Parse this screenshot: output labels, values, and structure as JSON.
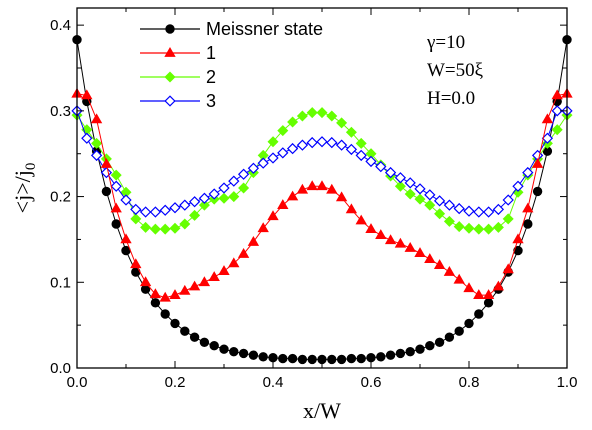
{
  "chart_data": {
    "type": "line",
    "xlabel": "x/W",
    "ylabel": "<j>/j",
    "ylabel_subscript": "0",
    "xlim": [
      0.0,
      1.0
    ],
    "ylim": [
      0.0,
      0.42
    ],
    "xticks": [
      "0.0",
      "0.2",
      "0.4",
      "0.6",
      "0.8",
      "1.0"
    ],
    "yticks": [
      "0.0",
      "0.1",
      "0.2",
      "0.3",
      "0.4"
    ],
    "annotations": [
      "γ=10",
      "W=50ξ",
      "H=0.0"
    ],
    "legend_position": "top-left",
    "series": [
      {
        "name": "Meissner state",
        "color": "#000000",
        "marker": "circle",
        "x": [
          0.0,
          0.02,
          0.04,
          0.06,
          0.08,
          0.1,
          0.12,
          0.14,
          0.16,
          0.18,
          0.2,
          0.22,
          0.24,
          0.26,
          0.28,
          0.3,
          0.32,
          0.34,
          0.36,
          0.38,
          0.4,
          0.42,
          0.44,
          0.46,
          0.48,
          0.5,
          0.52,
          0.54,
          0.56,
          0.58,
          0.6,
          0.62,
          0.64,
          0.66,
          0.68,
          0.7,
          0.72,
          0.74,
          0.76,
          0.78,
          0.8,
          0.82,
          0.84,
          0.86,
          0.88,
          0.9,
          0.92,
          0.94,
          0.96,
          0.98,
          1.0
        ],
        "y": [
          0.383,
          0.311,
          0.253,
          0.206,
          0.168,
          0.137,
          0.112,
          0.092,
          0.076,
          0.063,
          0.052,
          0.043,
          0.036,
          0.03,
          0.026,
          0.022,
          0.019,
          0.017,
          0.015,
          0.013,
          0.012,
          0.011,
          0.011,
          0.01,
          0.01,
          0.01,
          0.01,
          0.01,
          0.011,
          0.011,
          0.012,
          0.013,
          0.015,
          0.017,
          0.019,
          0.022,
          0.026,
          0.03,
          0.036,
          0.043,
          0.052,
          0.063,
          0.076,
          0.092,
          0.112,
          0.137,
          0.168,
          0.206,
          0.253,
          0.311,
          0.383
        ]
      },
      {
        "name": "1",
        "color": "#ff0000",
        "marker": "triangle",
        "x": [
          0.0,
          0.02,
          0.04,
          0.06,
          0.08,
          0.1,
          0.12,
          0.14,
          0.16,
          0.18,
          0.2,
          0.22,
          0.24,
          0.26,
          0.28,
          0.3,
          0.32,
          0.34,
          0.36,
          0.38,
          0.4,
          0.42,
          0.44,
          0.46,
          0.48,
          0.5,
          0.52,
          0.54,
          0.56,
          0.58,
          0.6,
          0.62,
          0.64,
          0.66,
          0.68,
          0.7,
          0.72,
          0.74,
          0.76,
          0.78,
          0.8,
          0.82,
          0.84,
          0.86,
          0.88,
          0.9,
          0.92,
          0.94,
          0.96,
          0.98,
          1.0
        ],
        "y": [
          0.32,
          0.318,
          0.29,
          0.238,
          0.186,
          0.15,
          0.121,
          0.1,
          0.086,
          0.082,
          0.085,
          0.09,
          0.095,
          0.1,
          0.106,
          0.113,
          0.122,
          0.133,
          0.147,
          0.163,
          0.177,
          0.19,
          0.2,
          0.208,
          0.212,
          0.212,
          0.208,
          0.199,
          0.185,
          0.172,
          0.162,
          0.155,
          0.149,
          0.145,
          0.14,
          0.134,
          0.127,
          0.12,
          0.112,
          0.103,
          0.093,
          0.085,
          0.085,
          0.095,
          0.115,
          0.15,
          0.186,
          0.238,
          0.29,
          0.318,
          0.32
        ]
      },
      {
        "name": "2",
        "color": "#66ff00",
        "marker": "diamond",
        "x": [
          0.0,
          0.02,
          0.04,
          0.06,
          0.08,
          0.1,
          0.12,
          0.14,
          0.16,
          0.18,
          0.2,
          0.22,
          0.24,
          0.26,
          0.28,
          0.3,
          0.32,
          0.34,
          0.36,
          0.38,
          0.4,
          0.42,
          0.44,
          0.46,
          0.48,
          0.5,
          0.52,
          0.54,
          0.56,
          0.58,
          0.6,
          0.62,
          0.64,
          0.66,
          0.68,
          0.7,
          0.72,
          0.74,
          0.76,
          0.78,
          0.8,
          0.82,
          0.84,
          0.86,
          0.88,
          0.9,
          0.92,
          0.94,
          0.96,
          0.98,
          1.0
        ],
        "y": [
          0.295,
          0.278,
          0.262,
          0.244,
          0.225,
          0.205,
          0.174,
          0.164,
          0.162,
          0.162,
          0.163,
          0.168,
          0.178,
          0.19,
          0.197,
          0.198,
          0.2,
          0.21,
          0.228,
          0.248,
          0.264,
          0.277,
          0.287,
          0.294,
          0.298,
          0.298,
          0.294,
          0.286,
          0.275,
          0.262,
          0.25,
          0.237,
          0.224,
          0.212,
          0.203,
          0.197,
          0.19,
          0.18,
          0.171,
          0.165,
          0.163,
          0.162,
          0.162,
          0.164,
          0.174,
          0.205,
          0.225,
          0.244,
          0.262,
          0.278,
          0.295
        ]
      },
      {
        "name": "3",
        "color": "#0000ff",
        "marker": "diamond-open",
        "x": [
          0.0,
          0.02,
          0.04,
          0.06,
          0.08,
          0.1,
          0.12,
          0.14,
          0.16,
          0.18,
          0.2,
          0.22,
          0.24,
          0.26,
          0.28,
          0.3,
          0.32,
          0.34,
          0.36,
          0.38,
          0.4,
          0.42,
          0.44,
          0.46,
          0.48,
          0.5,
          0.52,
          0.54,
          0.56,
          0.58,
          0.6,
          0.62,
          0.64,
          0.66,
          0.68,
          0.7,
          0.72,
          0.74,
          0.76,
          0.78,
          0.8,
          0.82,
          0.84,
          0.86,
          0.88,
          0.9,
          0.92,
          0.94,
          0.96,
          0.98,
          1.0
        ],
        "y": [
          0.3,
          0.268,
          0.248,
          0.228,
          0.212,
          0.196,
          0.185,
          0.182,
          0.182,
          0.184,
          0.187,
          0.19,
          0.194,
          0.198,
          0.203,
          0.21,
          0.218,
          0.226,
          0.233,
          0.239,
          0.245,
          0.251,
          0.256,
          0.26,
          0.263,
          0.264,
          0.263,
          0.26,
          0.255,
          0.248,
          0.241,
          0.235,
          0.228,
          0.222,
          0.216,
          0.209,
          0.202,
          0.195,
          0.19,
          0.186,
          0.183,
          0.182,
          0.182,
          0.185,
          0.196,
          0.212,
          0.228,
          0.248,
          0.268,
          0.3,
          0.3
        ]
      }
    ]
  }
}
